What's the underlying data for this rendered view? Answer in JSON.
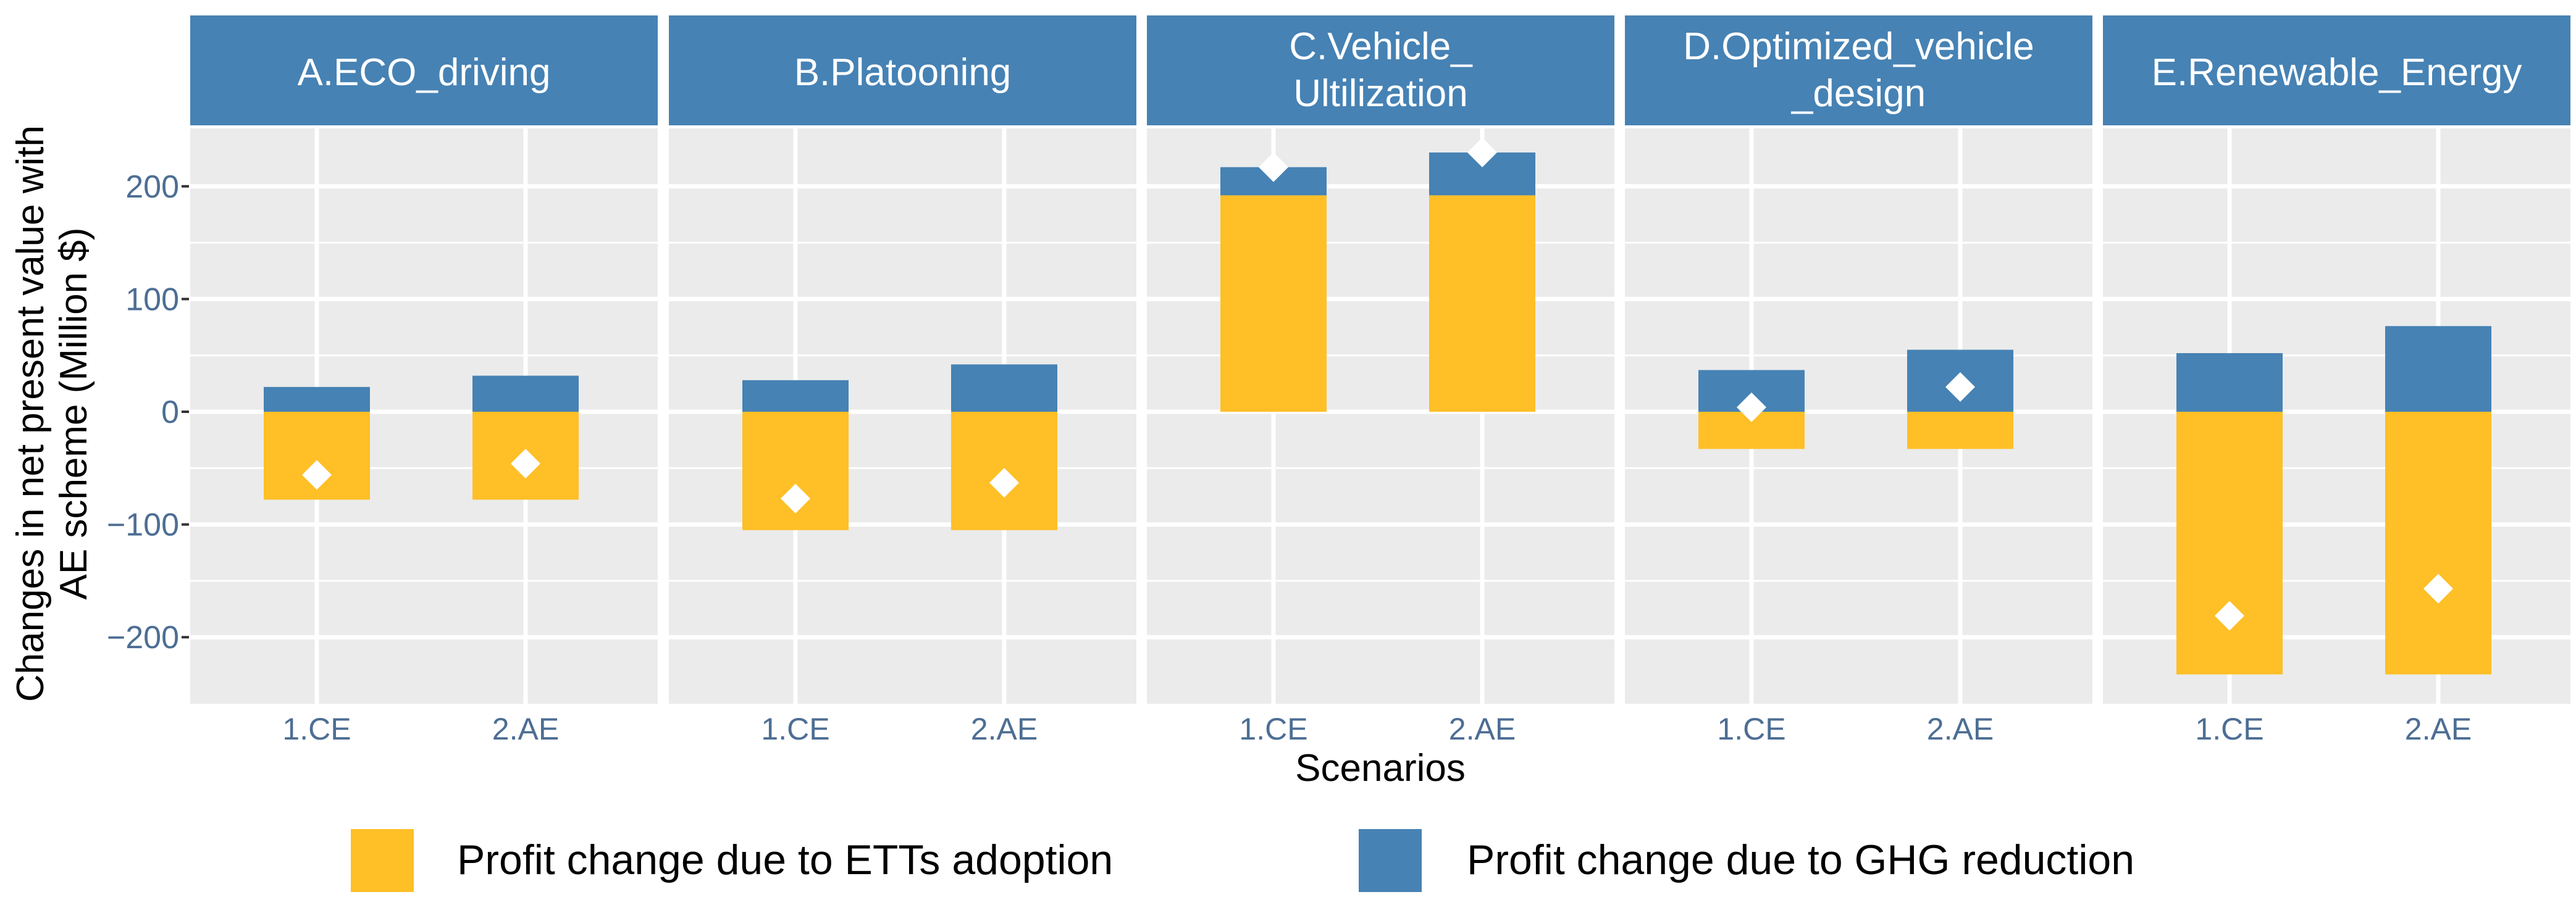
{
  "chart_data": {
    "type": "bar",
    "subtype": "stacked-bar-faceted",
    "xlabel": "Scenarios",
    "ylabel_lines": [
      "Changes in net present value with",
      "AE scheme (Million $)"
    ],
    "categories": [
      "1.CE",
      "2.AE"
    ],
    "ylim": [
      -255,
      255
    ],
    "yticks": [
      -200,
      -100,
      0,
      100,
      200
    ],
    "ytick_labels": [
      "−200",
      "−100",
      "0",
      "100",
      "200"
    ],
    "colors": {
      "ett": "#FEBF27",
      "ghg": "#4682B4",
      "strip": "#4682B4",
      "panel": "#EBEBEB",
      "grid": "#FFFFFF",
      "marker": "#FFFFFF",
      "tick_text": "#4D6E94"
    },
    "legend": [
      {
        "key": "ett",
        "label": "Profit change due to ETTs adoption"
      },
      {
        "key": "ghg",
        "label": "Profit change due to GHG reduction"
      }
    ],
    "facets": [
      {
        "title_lines": [
          "A.ECO_driving"
        ],
        "ett": [
          -78,
          -78
        ],
        "ghg": [
          22,
          32
        ],
        "net": [
          -56,
          -46
        ]
      },
      {
        "title_lines": [
          "B.Platooning"
        ],
        "ett": [
          -105,
          -105
        ],
        "ghg": [
          28,
          42
        ],
        "net": [
          -77,
          -63
        ]
      },
      {
        "title_lines": [
          "C.Vehicle_",
          "Ultilization"
        ],
        "ett": [
          192,
          192
        ],
        "ghg": [
          25,
          38
        ],
        "net": [
          217,
          230
        ]
      },
      {
        "title_lines": [
          "D.Optimized_vehicle",
          "_design"
        ],
        "ett": [
          -33,
          -33
        ],
        "ghg": [
          37,
          55
        ],
        "net": [
          4,
          22
        ]
      },
      {
        "title_lines": [
          "E.Renewable_Energy"
        ],
        "ett": [
          -233,
          -233
        ],
        "ghg": [
          52,
          76
        ],
        "net": [
          -181,
          -157
        ]
      }
    ]
  }
}
